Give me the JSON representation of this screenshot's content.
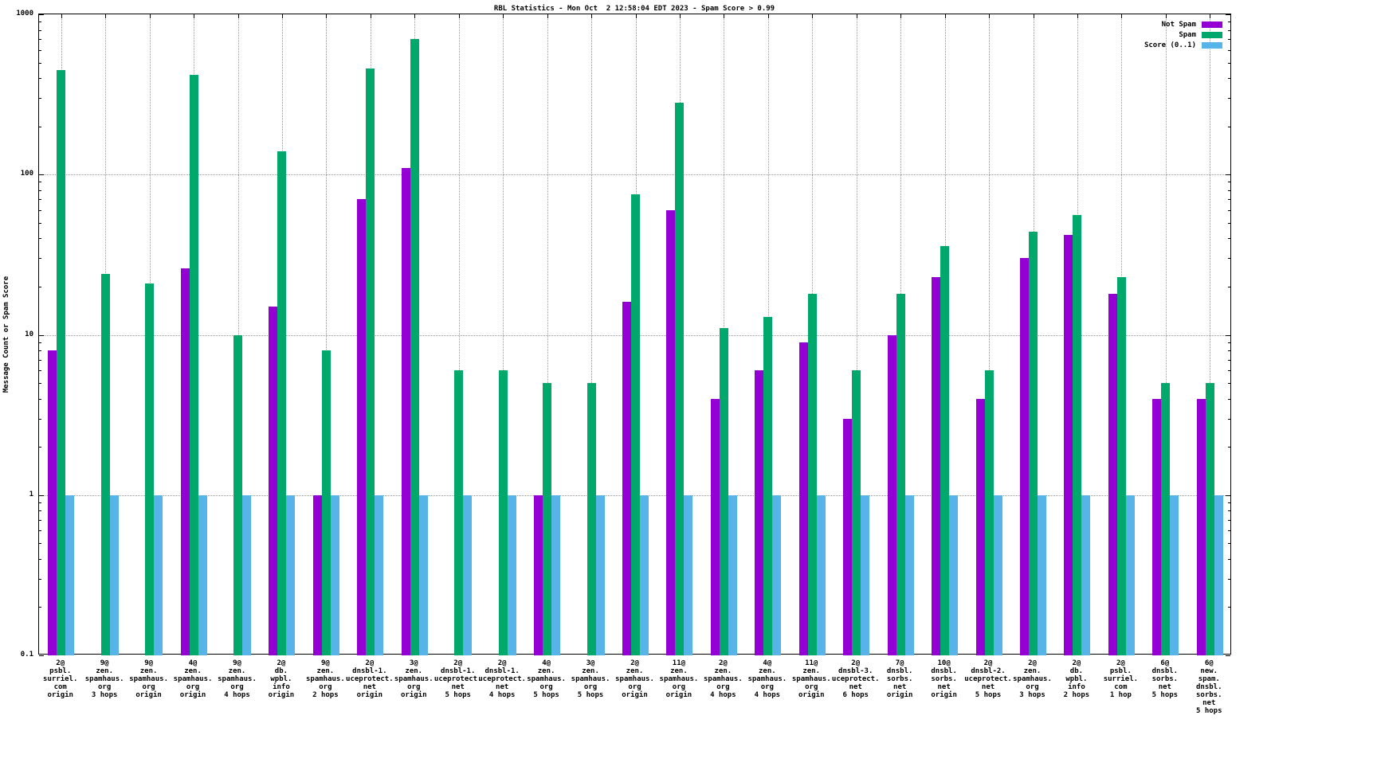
{
  "chart_data": {
    "type": "bar",
    "title": "RBL Statistics - Mon Oct  2 12:58:04 EDT 2023 - Spam Score > 0.99",
    "ylabel": "Message Count or Spam Score",
    "xlabel": "",
    "y_scale": "log",
    "ylim": [
      0.1,
      1000
    ],
    "y_ticks": [
      "0.1",
      "1",
      "10",
      "100",
      "1000"
    ],
    "grid": true,
    "legend_position": "top-right",
    "categories": [
      [
        "2@",
        "psbl.",
        "surriel.",
        "com",
        "origin"
      ],
      [
        "9@",
        "zen.",
        "spamhaus.",
        "org",
        "3 hops"
      ],
      [
        "9@",
        "zen.",
        "spamhaus.",
        "org",
        "origin"
      ],
      [
        "4@",
        "zen.",
        "spamhaus.",
        "org",
        "origin"
      ],
      [
        "9@",
        "zen.",
        "spamhaus.",
        "org",
        "4 hops"
      ],
      [
        "2@",
        "db.",
        "wpbl.",
        "info",
        "origin"
      ],
      [
        "9@",
        "zen.",
        "spamhaus.",
        "org",
        "2 hops"
      ],
      [
        "2@",
        "dnsbl-1.",
        "uceprotect.",
        "net",
        "origin"
      ],
      [
        "3@",
        "zen.",
        "spamhaus.",
        "org",
        "origin"
      ],
      [
        "2@",
        "dnsbl-1.",
        "uceprotect.",
        "net",
        "5 hops"
      ],
      [
        "2@",
        "dnsbl-1.",
        "uceprotect.",
        "net",
        "4 hops"
      ],
      [
        "4@",
        "zen.",
        "spamhaus.",
        "org",
        "5 hops"
      ],
      [
        "3@",
        "zen.",
        "spamhaus.",
        "org",
        "5 hops"
      ],
      [
        "2@",
        "zen.",
        "spamhaus.",
        "org",
        "origin"
      ],
      [
        "11@",
        "zen.",
        "spamhaus.",
        "org",
        "origin"
      ],
      [
        "2@",
        "zen.",
        "spamhaus.",
        "org",
        "4 hops"
      ],
      [
        "4@",
        "zen.",
        "spamhaus.",
        "org",
        "4 hops"
      ],
      [
        "11@",
        "zen.",
        "spamhaus.",
        "org",
        "origin"
      ],
      [
        "2@",
        "dnsbl-3.",
        "uceprotect.",
        "net",
        "6 hops"
      ],
      [
        "7@",
        "dnsbl.",
        "sorbs.",
        "net",
        "origin"
      ],
      [
        "10@",
        "dnsbl.",
        "sorbs.",
        "net",
        "origin"
      ],
      [
        "2@",
        "dnsbl-2.",
        "uceprotect.",
        "net",
        "5 hops"
      ],
      [
        "2@",
        "zen.",
        "spamhaus.",
        "org",
        "3 hops"
      ],
      [
        "2@",
        "db.",
        "wpbl.",
        "info",
        "2 hops"
      ],
      [
        "2@",
        "psbl.",
        "surriel.",
        "com",
        "1 hop"
      ],
      [
        "6@",
        "dnsbl.",
        "sorbs.",
        "net",
        "5 hops"
      ],
      [
        "6@",
        "new.",
        "spam.",
        "dnsbl.",
        "sorbs.",
        "net",
        "5 hops"
      ]
    ],
    "series": [
      {
        "name": "Not Spam",
        "color": "#9400d3",
        "values": [
          8,
          null,
          null,
          26,
          null,
          15,
          1,
          70,
          110,
          null,
          null,
          1,
          null,
          16,
          60,
          4,
          6,
          9,
          3,
          10,
          23,
          4,
          30,
          42,
          18,
          4,
          4
        ]
      },
      {
        "name": "Spam",
        "color": "#00a86b",
        "values": [
          450,
          24,
          21,
          420,
          10,
          140,
          8,
          460,
          700,
          6,
          6,
          5,
          5,
          75,
          280,
          11,
          13,
          18,
          6,
          18,
          36,
          6,
          44,
          56,
          23,
          5,
          5
        ]
      },
      {
        "name": "Score (0..1)",
        "color": "#56b4e9",
        "values": [
          1,
          1,
          1,
          1,
          1,
          1,
          1,
          1,
          1,
          1,
          1,
          1,
          1,
          1,
          1,
          1,
          1,
          1,
          1,
          1,
          1,
          1,
          1,
          1,
          1,
          1,
          1
        ]
      }
    ]
  }
}
